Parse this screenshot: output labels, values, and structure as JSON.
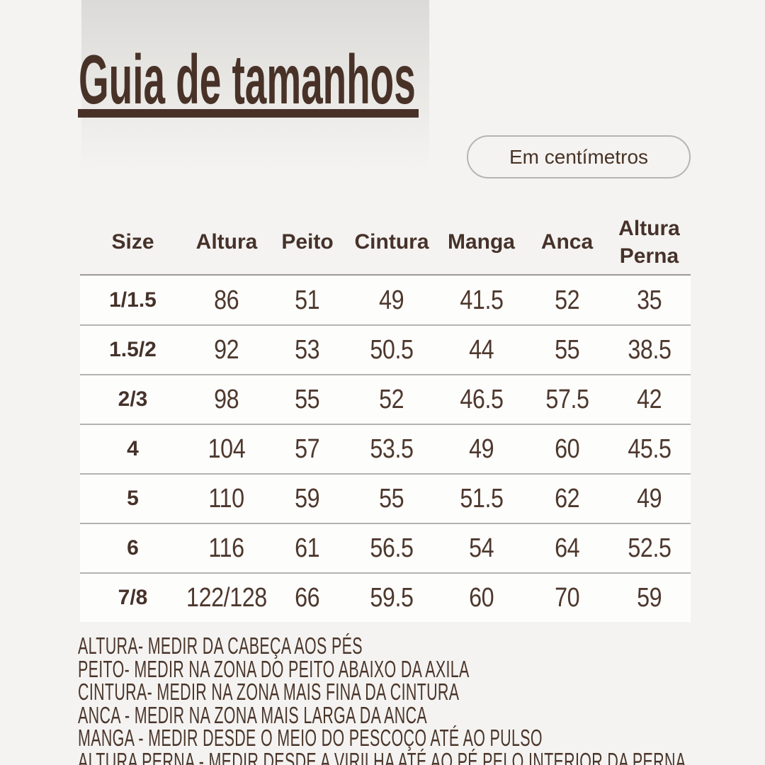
{
  "page": {
    "background_color": "#f4f3f1",
    "accent_color": "#483227",
    "row_color": "#fdfdfc",
    "separator_color": "#b5b3b1"
  },
  "header": {
    "title": "Guia de tamanhos",
    "unit_badge": "Em centímetros"
  },
  "table": {
    "headers": [
      "Size",
      "Altura",
      "Peito",
      "Cintura",
      "Manga",
      "Anca",
      "Altura Perna"
    ],
    "rows": [
      {
        "cells": [
          "1/1.5",
          "86",
          "51",
          "49",
          "41.5",
          "52",
          "35"
        ]
      },
      {
        "cells": [
          "1.5/2",
          "92",
          "53",
          "50.5",
          "44",
          "55",
          "38.5"
        ]
      },
      {
        "cells": [
          "2/3",
          "98",
          "55",
          "52",
          "46.5",
          "57.5",
          "42"
        ]
      },
      {
        "cells": [
          "4",
          "104",
          "57",
          "53.5",
          "49",
          "60",
          "45.5"
        ]
      },
      {
        "cells": [
          "5",
          "110",
          "59",
          "55",
          "51.5",
          "62",
          "49"
        ]
      },
      {
        "cells": [
          "6",
          "116",
          "61",
          "56.5",
          "54",
          "64",
          "52.5"
        ]
      },
      {
        "cells": [
          "7/8",
          "122/128",
          "66",
          "59.5",
          "60",
          "70",
          "59"
        ]
      }
    ]
  },
  "notes": [
    "ALTURA- MEDIR DA CABEÇA AOS PÉS",
    "PEITO- MEDIR NA ZONA DO PEITO ABAIXO DA AXILA",
    "CINTURA- MEDIR NA ZONA MAIS FINA DA CINTURA",
    "ANCA - MEDIR NA ZONA MAIS LARGA DA ANCA",
    "MANGA - MEDIR DESDE O MEIO DO PESCOÇO ATÉ AO PULSO",
    "ALTURA PERNA - MEDIR DESDE A VIRILHA ATÉ AO PÉ PELO INTERIOR DA PERNA"
  ]
}
